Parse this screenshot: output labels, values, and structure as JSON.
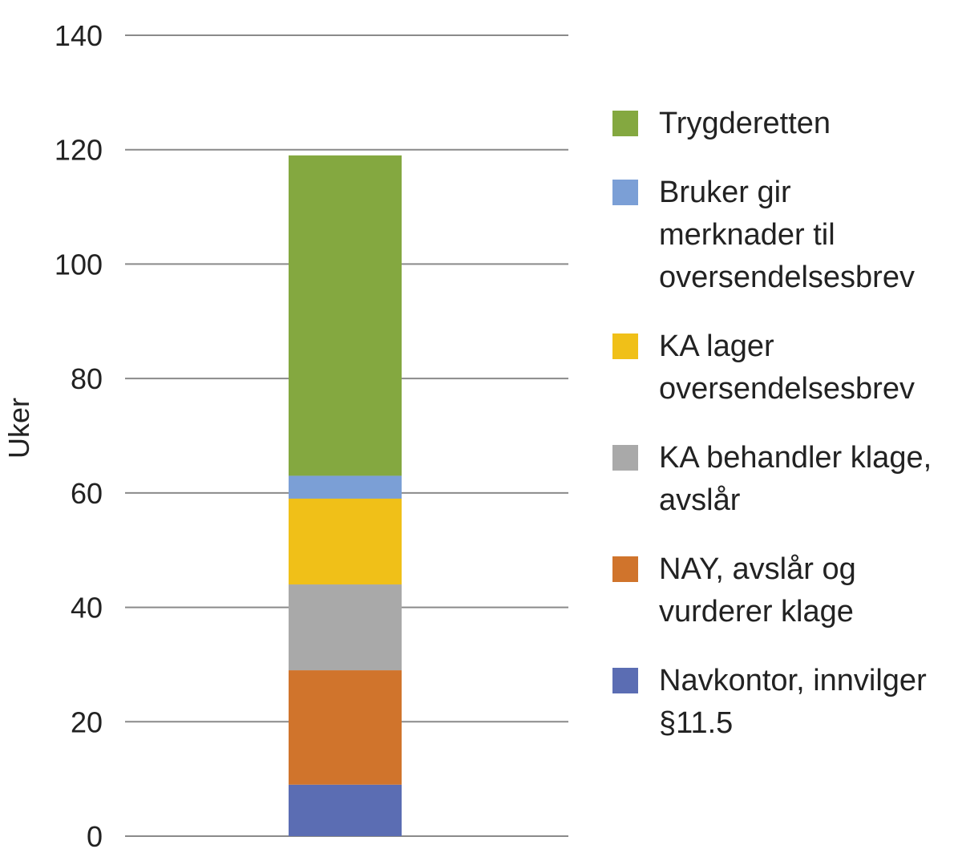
{
  "chart_data": {
    "type": "bar",
    "stacked": true,
    "ylabel": "Uker",
    "xlabel": "",
    "ylim": [
      0,
      140
    ],
    "yticks": [
      0,
      20,
      40,
      60,
      80,
      100,
      120,
      140
    ],
    "categories": [
      ""
    ],
    "series": [
      {
        "name": "Navkontor, innvilger §11.5",
        "label": "Navkontor, innvilger\n§11.5",
        "color": "#5b6db3",
        "values": [
          9
        ]
      },
      {
        "name": "NAY, avslår og vurderer klage",
        "label": "NAY, avslår og\nvurderer klage",
        "color": "#d0742c",
        "values": [
          20
        ]
      },
      {
        "name": "KA behandler klage, avslår",
        "label": "KA behandler klage,\navslår",
        "color": "#a9a9a9",
        "values": [
          15
        ]
      },
      {
        "name": "KA lager oversendelsesbrev",
        "label": "KA lager\noversendelsesbrev",
        "color": "#f0c018",
        "values": [
          15
        ]
      },
      {
        "name": "Bruker gir merknader til oversendelsesbrev",
        "label": "Bruker gir\nmerknader til\noversendelsesbrev",
        "color": "#7b9fd6",
        "values": [
          4
        ]
      },
      {
        "name": "Trygderetten",
        "label": "Trygderetten",
        "color": "#84a840",
        "values": [
          56
        ]
      }
    ],
    "legend_position": "right"
  }
}
